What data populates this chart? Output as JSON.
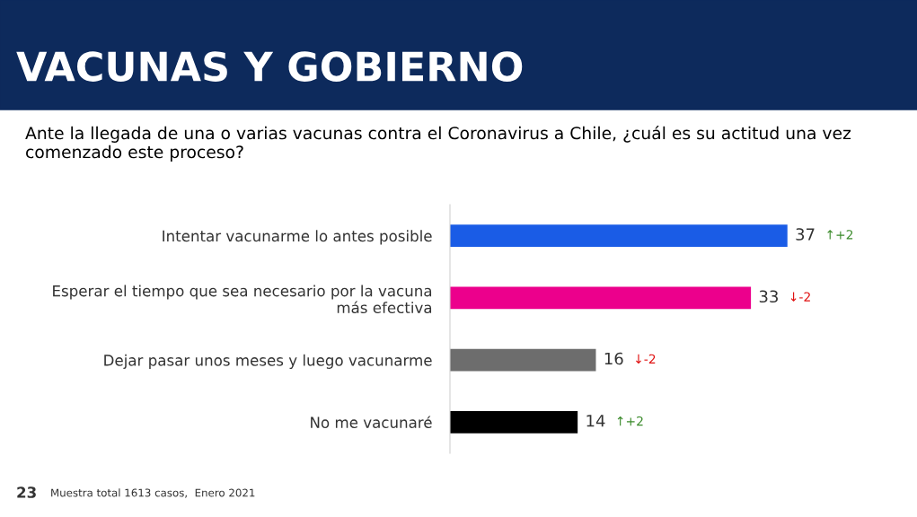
{
  "chart_data": {
    "type": "bar",
    "orientation": "horizontal",
    "title": "VACUNAS Y GOBIERNO",
    "subtitle": "Ante la llegada de una o varias vacunas contra el Coronavirus a Chile, ¿cuál es su actitud una vez comenzado este proceso?",
    "categories": [
      "Intentar vacunarme lo antes posible",
      "Esperar el tiempo que sea necesario por la vacuna\nmás efectiva",
      "Dejar pasar unos meses y luego vacunarme",
      "No me vacunaré"
    ],
    "values": [
      37,
      33,
      16,
      14
    ],
    "colors": [
      "#1a5ce6",
      "#ec008c",
      "#6d6d6d",
      "#000000"
    ],
    "data_labels": true,
    "grid": false,
    "annotations": [
      "↑+2",
      "↓-2",
      "↓-2",
      "↑+2",
      "23",
      "Muestra total 1613 casos,  Enero 2021"
    ]
  }
}
